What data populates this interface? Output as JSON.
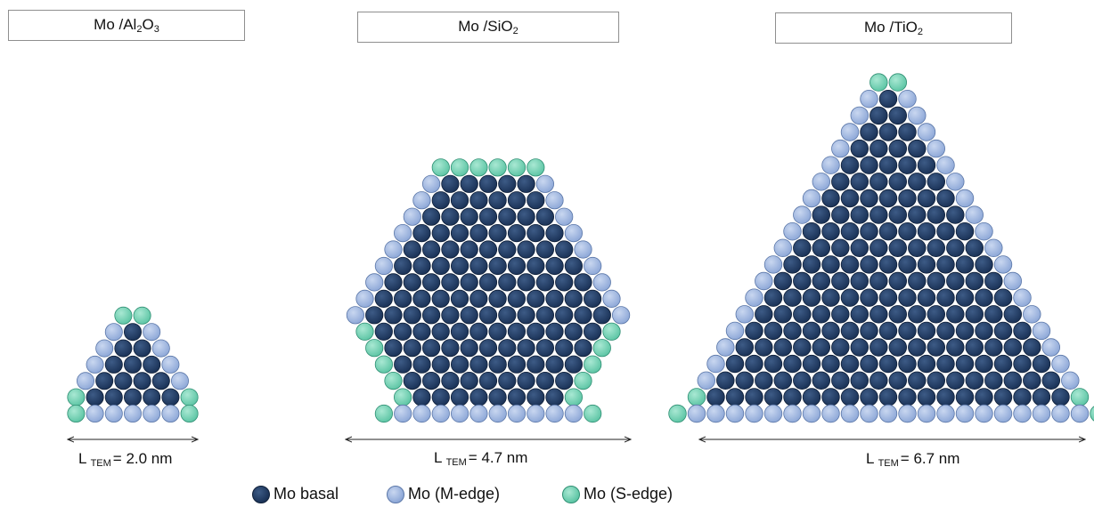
{
  "panels": [
    {
      "id": "al2o3",
      "title": {
        "base": "Mo /Al",
        "sub1": "2",
        "mid": "O",
        "sub2": "3"
      },
      "length": {
        "pre": "L",
        "sub": "TEM",
        "value": "= 2.0 nm"
      },
      "shape": "triangle",
      "rows": [
        [
          "S",
          "S"
        ],
        [
          "M",
          "B",
          "M"
        ],
        [
          "M",
          "B",
          "B",
          "M"
        ],
        [
          "M",
          "B",
          "B",
          "B",
          "M"
        ],
        [
          "M",
          "B",
          "B",
          "B",
          "B",
          "M"
        ],
        [
          "S",
          "B",
          "B",
          "B",
          "B",
          "B",
          "S"
        ],
        [
          "S",
          "M",
          "M",
          "M",
          "M",
          "M",
          "S"
        ]
      ]
    },
    {
      "id": "sio2",
      "title": {
        "base": "Mo /Si",
        "sub1": "",
        "mid": "O",
        "sub2": "2"
      },
      "length": {
        "pre": "L",
        "sub": "TEM",
        "value": "= 4.7 nm"
      },
      "shape": "truncated-triangle",
      "top_s": 6,
      "top_m_row_len": 7,
      "widening_rows": 9,
      "narrowing_rows": 5,
      "bottom_m": 10
    },
    {
      "id": "tio2",
      "title": {
        "base": "Mo /Ti",
        "sub1": "",
        "mid": "O",
        "sub2": "2"
      },
      "length": {
        "pre": "L",
        "sub": "TEM",
        "value": "= 6.7 nm"
      },
      "shape": "triangle",
      "top_s": 2,
      "widening_rows": 19,
      "bottom_m": 21
    }
  ],
  "legend": [
    {
      "key": "B",
      "label": "Mo basal"
    },
    {
      "key": "M",
      "label": "Mo (M-edge)"
    },
    {
      "key": "S",
      "label": "Mo (S-edge)"
    }
  ],
  "colors": {
    "B": {
      "fill": "#1b3358",
      "light": "#3d5b86",
      "stroke": "#0f1f38"
    },
    "M": {
      "fill": "#8fa9d8",
      "light": "#c9d7f0",
      "stroke": "#5b77a8"
    },
    "S": {
      "fill": "#5fc6a6",
      "light": "#a9e8d3",
      "stroke": "#2f8f73"
    }
  }
}
